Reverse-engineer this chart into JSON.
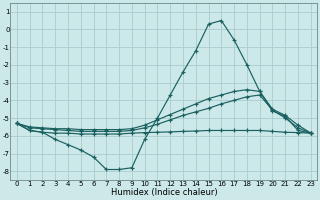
{
  "xlabel": "Humidex (Indice chaleur)",
  "background_color": "#cce8e8",
  "grid_color": "#aacccc",
  "line_color": "#1a6060",
  "xlim": [
    -0.5,
    23.5
  ],
  "ylim": [
    -8.5,
    1.5
  ],
  "xticks": [
    0,
    1,
    2,
    3,
    4,
    5,
    6,
    7,
    8,
    9,
    10,
    11,
    12,
    13,
    14,
    15,
    16,
    17,
    18,
    19,
    20,
    21,
    22,
    23
  ],
  "yticks": [
    -8,
    -7,
    -6,
    -5,
    -4,
    -3,
    -2,
    -1,
    0,
    1
  ],
  "series": [
    {
      "x": [
        0,
        1,
        2,
        3,
        4,
        5,
        6,
        7,
        8,
        9,
        10,
        11,
        12,
        13,
        14,
        15,
        16,
        17,
        18,
        19,
        20,
        21,
        22,
        23
      ],
      "y": [
        -5.3,
        -5.7,
        -5.8,
        -6.2,
        -6.5,
        -6.8,
        -7.2,
        -7.9,
        -7.9,
        -7.8,
        -6.2,
        -5.0,
        -3.7,
        -2.4,
        -1.2,
        0.3,
        0.5,
        -0.6,
        -2.0,
        -3.5,
        -4.6,
        -4.9,
        -5.7,
        -5.85
      ]
    },
    {
      "x": [
        0,
        1,
        2,
        3,
        4,
        5,
        6,
        7,
        8,
        9,
        10,
        11,
        12,
        13,
        14,
        15,
        16,
        17,
        18,
        19,
        20,
        21,
        22,
        23
      ],
      "y": [
        -5.3,
        -5.5,
        -5.55,
        -5.6,
        -5.6,
        -5.65,
        -5.65,
        -5.65,
        -5.65,
        -5.6,
        -5.4,
        -5.1,
        -4.8,
        -4.5,
        -4.2,
        -3.9,
        -3.7,
        -3.5,
        -3.4,
        -3.5,
        -4.5,
        -4.85,
        -5.4,
        -5.85
      ]
    },
    {
      "x": [
        0,
        1,
        2,
        3,
        4,
        5,
        6,
        7,
        8,
        9,
        10,
        11,
        12,
        13,
        14,
        15,
        16,
        17,
        18,
        19,
        20,
        21,
        22,
        23
      ],
      "y": [
        -5.3,
        -5.55,
        -5.6,
        -5.65,
        -5.7,
        -5.75,
        -5.75,
        -5.75,
        -5.75,
        -5.7,
        -5.55,
        -5.35,
        -5.1,
        -4.85,
        -4.65,
        -4.45,
        -4.2,
        -4.0,
        -3.8,
        -3.7,
        -4.55,
        -5.0,
        -5.55,
        -5.85
      ]
    },
    {
      "x": [
        0,
        1,
        2,
        3,
        4,
        5,
        6,
        7,
        8,
        9,
        10,
        11,
        12,
        13,
        14,
        15,
        16,
        17,
        18,
        19,
        20,
        21,
        22,
        23
      ],
      "y": [
        -5.3,
        -5.7,
        -5.8,
        -5.85,
        -5.85,
        -5.9,
        -5.9,
        -5.9,
        -5.9,
        -5.85,
        -5.82,
        -5.8,
        -5.78,
        -5.75,
        -5.73,
        -5.7,
        -5.7,
        -5.7,
        -5.7,
        -5.7,
        -5.75,
        -5.8,
        -5.82,
        -5.85
      ]
    }
  ]
}
